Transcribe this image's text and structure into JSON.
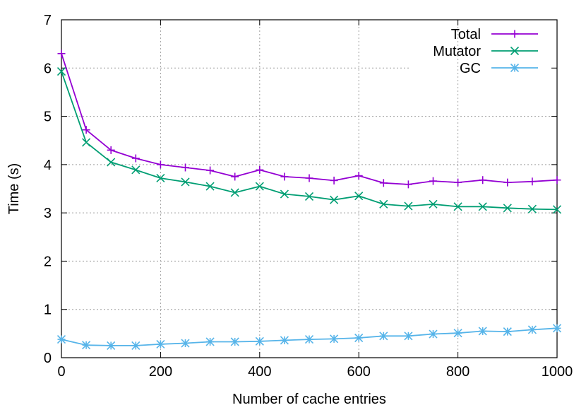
{
  "chart_data": {
    "type": "line",
    "title": "",
    "xlabel": "Number of cache entries",
    "ylabel": "Time (s)",
    "xlim": [
      0,
      1000
    ],
    "ylim": [
      0,
      7
    ],
    "xticks": [
      0,
      200,
      400,
      600,
      800,
      1000
    ],
    "yticks": [
      0,
      1,
      2,
      3,
      4,
      5,
      6,
      7
    ],
    "grid": true,
    "legend_position": "top-right",
    "x": [
      0,
      50,
      100,
      150,
      200,
      250,
      300,
      350,
      400,
      450,
      500,
      550,
      600,
      650,
      700,
      750,
      800,
      850,
      900,
      950,
      1000
    ],
    "series": [
      {
        "name": "Total",
        "color": "#9400d3",
        "marker": "plus",
        "values": [
          6.3,
          4.72,
          4.3,
          4.13,
          4.0,
          3.94,
          3.88,
          3.75,
          3.89,
          3.75,
          3.72,
          3.67,
          3.77,
          3.62,
          3.59,
          3.66,
          3.63,
          3.68,
          3.63,
          3.65,
          3.68
        ]
      },
      {
        "name": "Mutator",
        "color": "#009e73",
        "marker": "cross",
        "values": [
          5.93,
          4.46,
          4.05,
          3.89,
          3.72,
          3.64,
          3.55,
          3.42,
          3.55,
          3.39,
          3.34,
          3.27,
          3.35,
          3.18,
          3.14,
          3.18,
          3.13,
          3.13,
          3.1,
          3.08,
          3.07
        ]
      },
      {
        "name": "GC",
        "color": "#56b4e9",
        "marker": "asterisk",
        "values": [
          0.38,
          0.26,
          0.25,
          0.25,
          0.28,
          0.3,
          0.33,
          0.33,
          0.34,
          0.36,
          0.38,
          0.39,
          0.41,
          0.45,
          0.45,
          0.49,
          0.51,
          0.55,
          0.54,
          0.58,
          0.61
        ]
      }
    ]
  }
}
